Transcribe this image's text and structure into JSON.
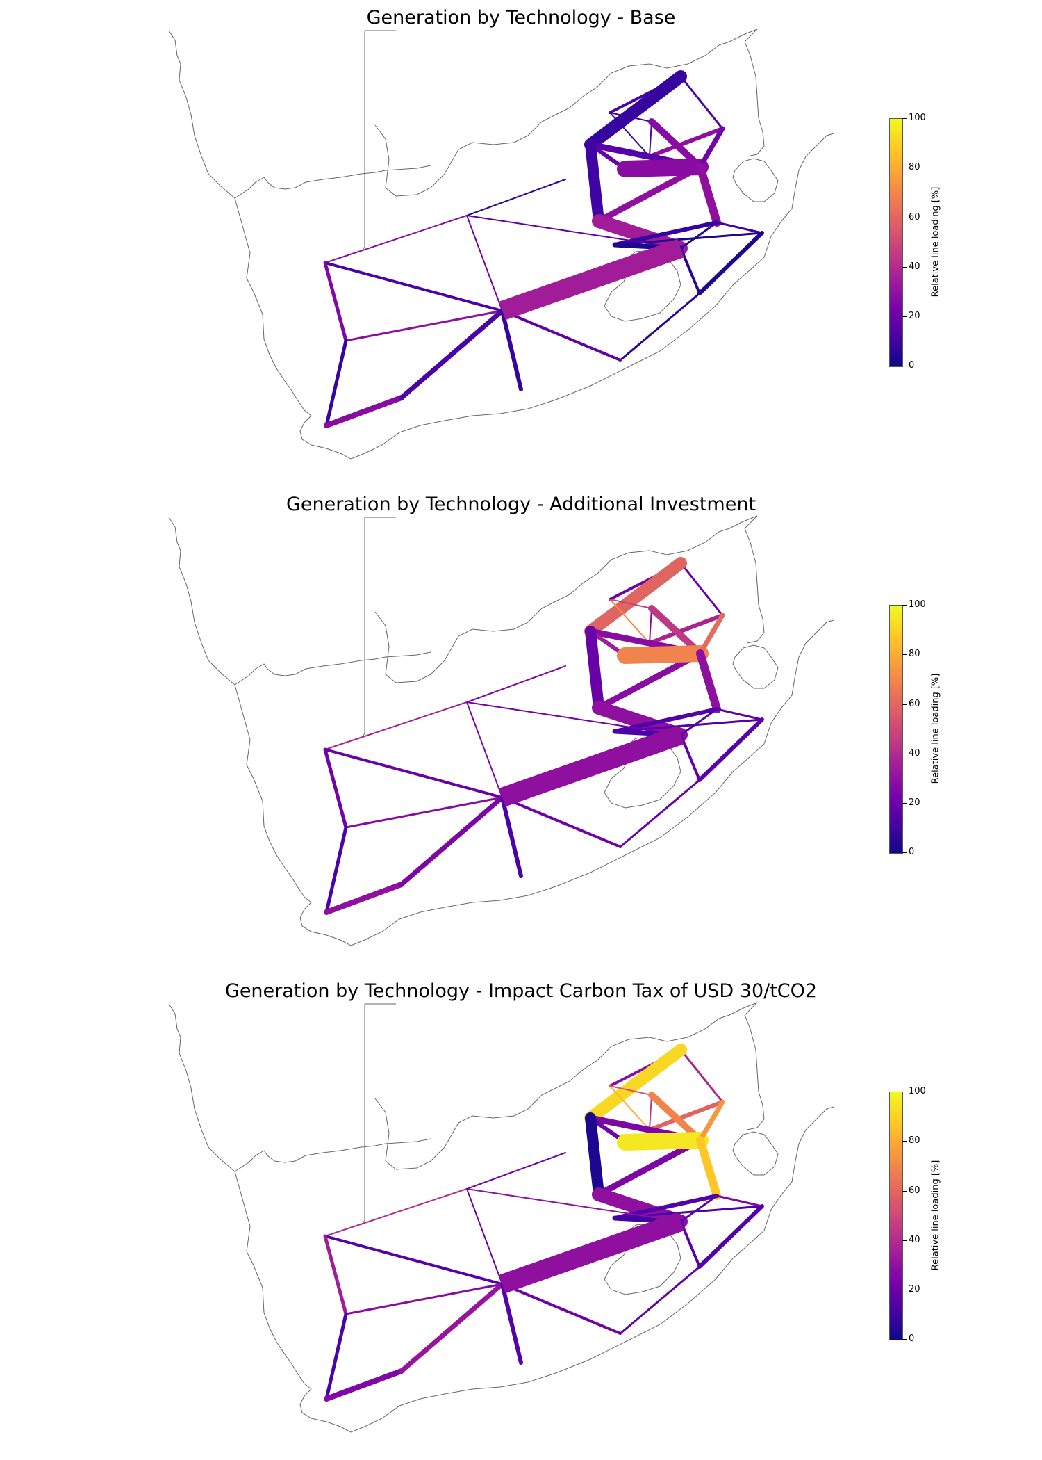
{
  "colors": {
    "coastline": "#666666",
    "colormap": "plasma",
    "colorbar_stops": [
      "#0d0887",
      "#46039f",
      "#7201a8",
      "#9c179e",
      "#bd3786",
      "#d8576b",
      "#ed7953",
      "#fb9f3a",
      "#fdca26",
      "#f0f921"
    ]
  },
  "colorbar": {
    "label": "Relative line loading [%]",
    "ticks": [
      "100",
      "80",
      "60",
      "40",
      "20",
      "0"
    ]
  },
  "panels": [
    {
      "title": "Generation by Technology - Base",
      "line_loading_percent": [
        12,
        12,
        8,
        7,
        10,
        12,
        30,
        28,
        15,
        20,
        10,
        30,
        35,
        28,
        22,
        30,
        10,
        5,
        8,
        3,
        3,
        3,
        5,
        5,
        6,
        28,
        18,
        22,
        12,
        30,
        26,
        8,
        28,
        12,
        18,
        8
      ]
    },
    {
      "title": "Generation by Technology - Additional Investment",
      "line_loading_percent": [
        22,
        20,
        60,
        72,
        48,
        28,
        38,
        45,
        28,
        35,
        20,
        28,
        30,
        70,
        62,
        30,
        18,
        15,
        14,
        14,
        12,
        16,
        18,
        20,
        26,
        36,
        22,
        25,
        20,
        28,
        22,
        12,
        30,
        25,
        22,
        12
      ]
    },
    {
      "title": "Generation by Technology - Impact Carbon Tax of USD 30/tCO2",
      "line_loading_percent": [
        28,
        38,
        92,
        82,
        55,
        45,
        60,
        70,
        25,
        22,
        3,
        25,
        30,
        96,
        75,
        88,
        25,
        18,
        14,
        12,
        10,
        14,
        16,
        18,
        22,
        40,
        30,
        20,
        15,
        28,
        35,
        12,
        26,
        32,
        22,
        15
      ]
    }
  ]
}
